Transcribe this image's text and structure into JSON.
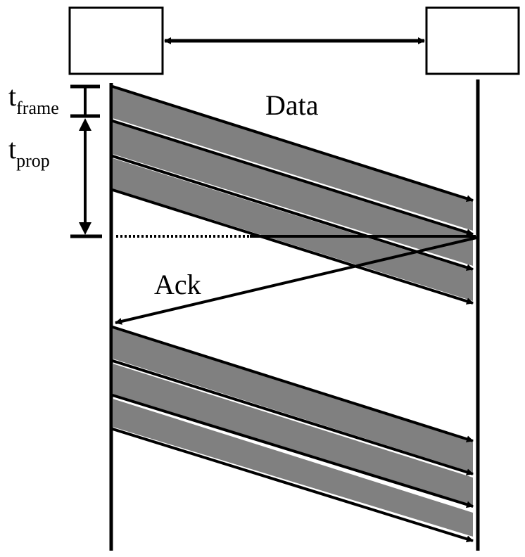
{
  "labels": {
    "data": "Data",
    "ack": "Ack",
    "t_frame_main": "t",
    "t_frame_sub": "frame",
    "t_prop_main": "t",
    "t_prop_sub": "prop"
  },
  "colors": {
    "line": "#000000",
    "frame_fill": "#808080",
    "background": "#ffffff"
  }
}
